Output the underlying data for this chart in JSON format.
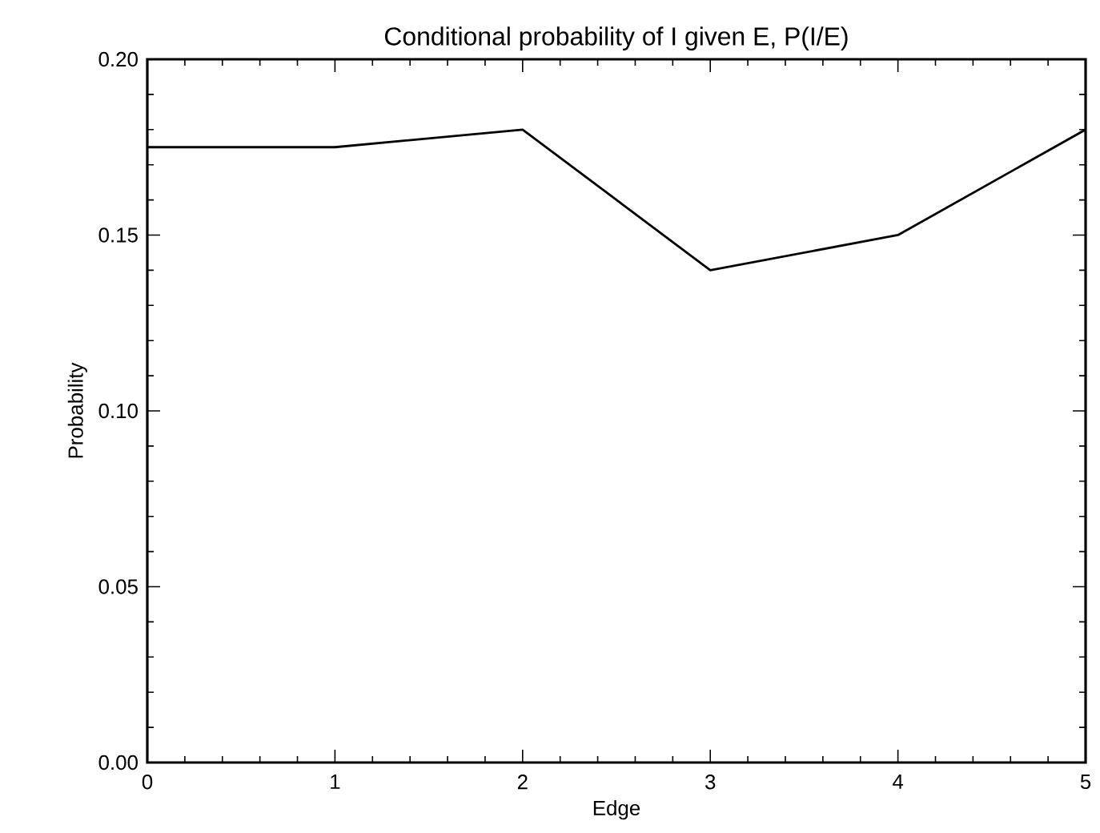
{
  "chart_data": {
    "type": "line",
    "title": "Conditional probability of I given E, P(I/E)",
    "xlabel": "Edge",
    "ylabel": "Probability",
    "x": [
      0,
      1,
      2,
      3,
      4,
      5
    ],
    "series": [
      {
        "color": "#000000",
        "values": [
          0.175,
          0.175,
          0.18,
          0.14,
          0.15,
          0.18
        ]
      }
    ],
    "xlim": [
      0,
      5
    ],
    "xticks": [
      0,
      1,
      2,
      3,
      4,
      5
    ],
    "ylim": [
      0,
      0.2
    ],
    "yticks": [
      {
        "value": 0,
        "label": "0.00"
      },
      {
        "value": 0.05,
        "label": "0.05"
      },
      {
        "value": 0.1,
        "label": "0.10"
      },
      {
        "value": 0.15,
        "label": "0.15"
      },
      {
        "value": 0.2,
        "label": "0.20"
      }
    ],
    "grid": false,
    "legend": false,
    "marker": "none",
    "line_style": "solid"
  }
}
